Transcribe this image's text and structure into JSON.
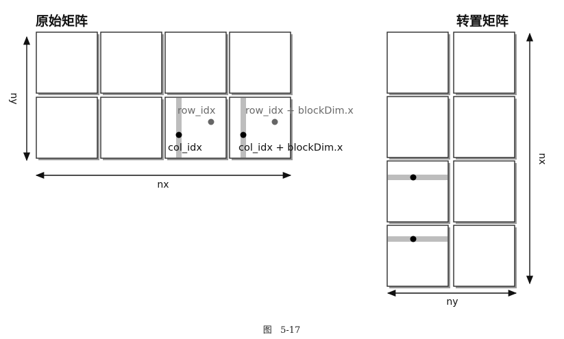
{
  "left": {
    "title": "原始矩阵",
    "x_axis_label": "nx",
    "y_axis_label": "ny",
    "annotations": {
      "row_idx": "row_idx",
      "row_idx_plus": "row_idx + blockDim.x",
      "col_idx": "col_idx",
      "col_idx_plus": "col_idx + blockDim.x"
    }
  },
  "right": {
    "title": "转置矩阵",
    "x_axis_label": "ny",
    "y_axis_label": "nx"
  },
  "caption": "图   5-17",
  "colors": {
    "cell_border": "#2a2a2a",
    "highlight_strip": "#bdbdbd",
    "dark_point": "#000000",
    "gray_point": "#666666",
    "gray_text": "#6a6a6a"
  }
}
